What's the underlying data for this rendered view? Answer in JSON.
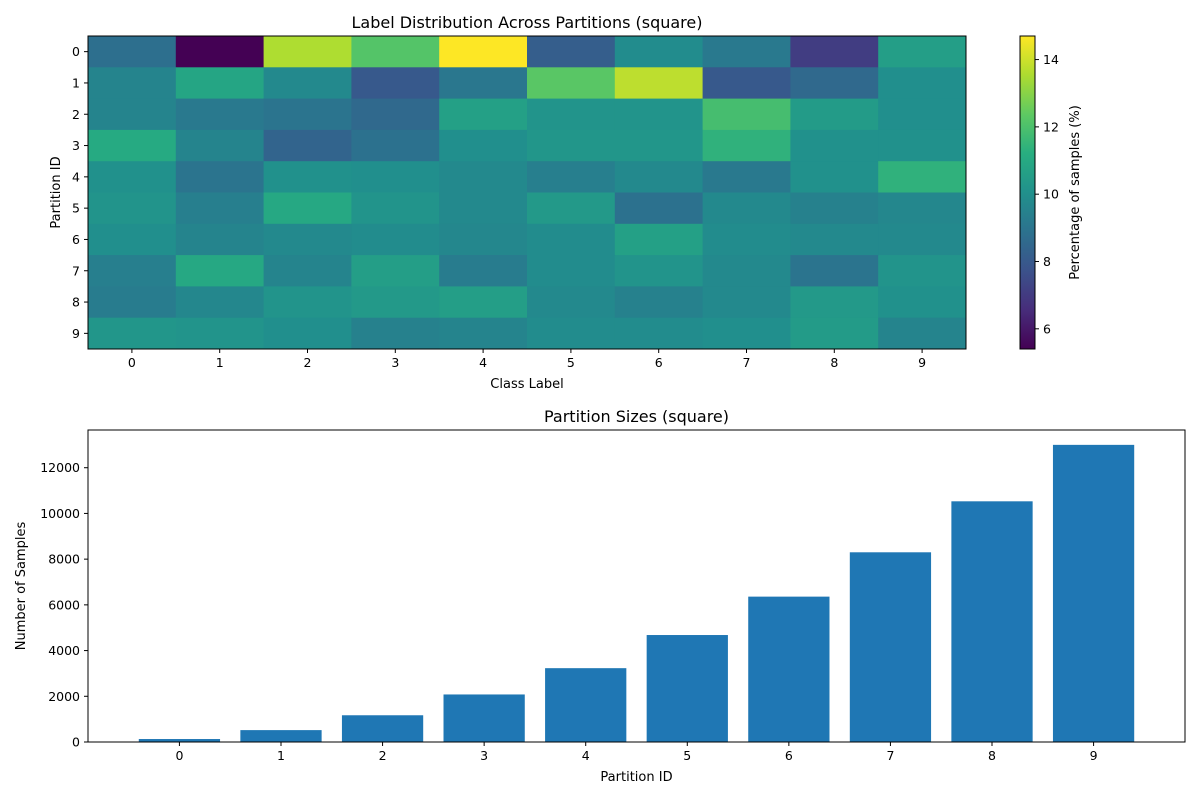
{
  "chart_data": [
    {
      "type": "heatmap",
      "title": "Label Distribution Across Partitions (square)",
      "xlabel": "Class Label",
      "ylabel": "Partition ID",
      "x_categories": [
        "0",
        "1",
        "2",
        "3",
        "4",
        "5",
        "6",
        "7",
        "8",
        "9"
      ],
      "y_categories": [
        "0",
        "1",
        "2",
        "3",
        "4",
        "5",
        "6",
        "7",
        "8",
        "9"
      ],
      "colormap": "viridis",
      "colorbar": {
        "label": "Percentage of samples (%)",
        "range": [
          5.4,
          14.7
        ],
        "ticks": [
          6,
          8,
          10,
          12,
          14
        ],
        "tick_labels": [
          "6",
          "8",
          "10",
          "12",
          "14"
        ]
      },
      "values": [
        [
          8.8,
          5.4,
          13.6,
          12.2,
          14.7,
          8.2,
          9.9,
          9.2,
          7.1,
          10.6
        ],
        [
          9.6,
          10.9,
          9.8,
          8.0,
          9.1,
          12.3,
          13.8,
          8.0,
          8.6,
          10.0
        ],
        [
          9.6,
          9.2,
          9.0,
          8.6,
          10.7,
          10.2,
          10.2,
          11.9,
          10.5,
          10.0
        ],
        [
          11.1,
          9.6,
          8.4,
          8.9,
          10.0,
          10.3,
          10.3,
          11.4,
          10.1,
          10.1
        ],
        [
          10.1,
          9.0,
          10.1,
          10.0,
          9.8,
          9.4,
          9.8,
          9.2,
          10.1,
          11.4
        ],
        [
          10.2,
          9.4,
          11.0,
          10.2,
          9.8,
          10.4,
          8.9,
          9.8,
          9.5,
          9.7
        ],
        [
          10.0,
          9.6,
          9.8,
          9.9,
          9.7,
          9.9,
          10.7,
          9.9,
          9.8,
          9.8
        ],
        [
          9.4,
          11.0,
          9.6,
          10.6,
          9.3,
          9.9,
          10.2,
          9.8,
          9.0,
          10.2
        ],
        [
          9.3,
          9.7,
          10.2,
          10.4,
          10.6,
          9.8,
          9.5,
          9.8,
          10.4,
          10.1
        ],
        [
          10.3,
          10.2,
          10.0,
          9.5,
          9.6,
          9.9,
          9.9,
          10.0,
          10.5,
          9.6
        ]
      ]
    },
    {
      "type": "bar",
      "title": "Partition Sizes (square)",
      "xlabel": "Partition ID",
      "ylabel": "Number of Samples",
      "categories": [
        "0",
        "1",
        "2",
        "3",
        "4",
        "5",
        "6",
        "7",
        "8",
        "9"
      ],
      "values": [
        130,
        520,
        1170,
        2080,
        3230,
        4680,
        6360,
        8300,
        10530,
        13000
      ],
      "ylim": [
        0,
        13650
      ],
      "yticks": [
        0,
        2000,
        4000,
        6000,
        8000,
        10000,
        12000
      ],
      "ytick_labels": [
        "0",
        "2000",
        "4000",
        "6000",
        "8000",
        "10000",
        "12000"
      ],
      "color": "#1f77b4"
    }
  ]
}
